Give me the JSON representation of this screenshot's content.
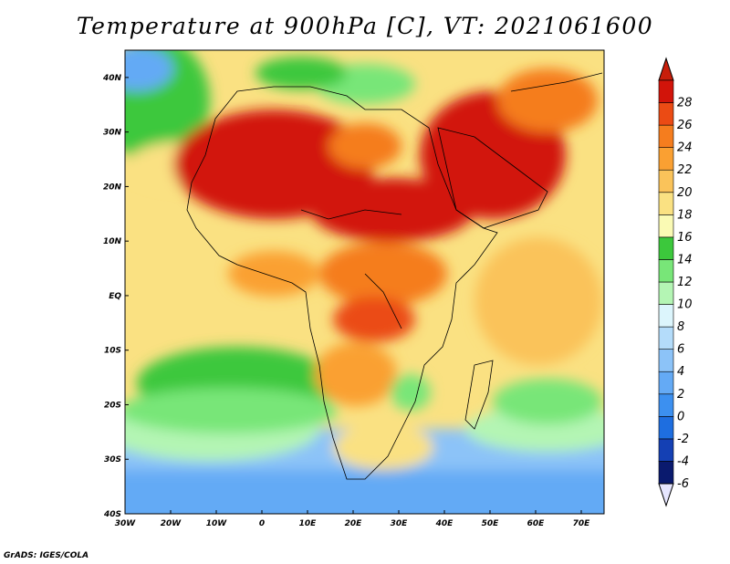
{
  "title": "Temperature at 900hPa [C], VT: 2021061600",
  "credit": "GrADS: IGES/COLA",
  "map": {
    "lon_range": [
      -30,
      75
    ],
    "lat_range": [
      -40,
      45
    ],
    "lon_ticks": [
      "30W",
      "20W",
      "10W",
      "0",
      "10E",
      "20E",
      "30E",
      "40E",
      "50E",
      "60E",
      "70E"
    ],
    "lat_ticks": [
      "40S",
      "30S",
      "20S",
      "10S",
      "EQ",
      "10N",
      "20N",
      "30N",
      "40N"
    ],
    "field": "temperature",
    "units": "C"
  },
  "colorbar": {
    "labels": [
      "-6",
      "-4",
      "-2",
      "0",
      "2",
      "4",
      "6",
      "8",
      "10",
      "12",
      "14",
      "16",
      "18",
      "20",
      "22",
      "24",
      "26",
      "28"
    ],
    "colors": [
      "#0a1a6e",
      "#1440b4",
      "#1e6ee0",
      "#3c90f0",
      "#64aaf5",
      "#8cc3f8",
      "#b4dcfa",
      "#dcf5fc",
      "#b4f5b4",
      "#78e678",
      "#3cc83c",
      "#fafab4",
      "#fae182",
      "#fac35a",
      "#faa032",
      "#f57d1e",
      "#eb4b14",
      "#d2140a"
    ],
    "under_color": "#e6e6ff",
    "over_color": "#c81e0a"
  }
}
